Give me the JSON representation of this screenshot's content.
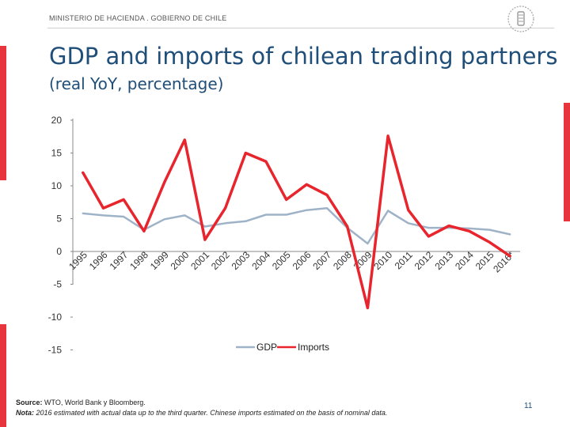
{
  "header": {
    "org": "MINISTERIO DE HACIENDA . GOBIERNO DE CHILE"
  },
  "slide": {
    "title": "GDP and imports of chilean trading partners",
    "subtitle": "(real YoY, percentage)",
    "source_label": "Source:",
    "source_text": " WTO, World Bank y Bloomberg.",
    "note_label": "Nota:",
    "note_text": " 2016 estimated with actual data up to the third quarter. Chinese imports estimated on the basis of nominal data.",
    "page_number": "11"
  },
  "colors": {
    "accent": "#e8343c",
    "gdp": "#9fb3c8",
    "imports": "#e8242c",
    "title": "#1f4e79"
  },
  "chart_data": {
    "type": "line",
    "title": "GDP and imports of chilean trading partners",
    "subtitle": "(real YoY, percentage)",
    "categories": [
      "1995",
      "1996",
      "1997",
      "1998",
      "1999",
      "2000",
      "2001",
      "2002",
      "2003",
      "2004",
      "2005",
      "2006",
      "2007",
      "2008",
      "2009",
      "2010",
      "2011",
      "2012",
      "2013",
      "2014",
      "2015",
      "2016*"
    ],
    "series": [
      {
        "name": "GDP",
        "values": [
          5.8,
          5.5,
          5.3,
          3.3,
          4.9,
          5.5,
          3.8,
          4.3,
          4.6,
          5.6,
          5.6,
          6.3,
          6.6,
          3.6,
          1.2,
          6.2,
          4.3,
          3.6,
          3.6,
          3.5,
          3.3,
          2.6
        ]
      },
      {
        "name": "Imports",
        "values": [
          12.0,
          6.6,
          7.9,
          3.1,
          10.5,
          17.0,
          1.8,
          6.6,
          15.0,
          13.7,
          7.9,
          10.2,
          8.6,
          3.8,
          -8.6,
          17.6,
          6.3,
          2.3,
          3.9,
          3.1,
          1.4,
          -0.7
        ]
      }
    ],
    "y_ticks": [
      "20",
      "15",
      "10",
      "5",
      "0",
      "-5",
      "-10",
      "-15"
    ],
    "ylim": [
      -15,
      20
    ],
    "legend": [
      "GDP",
      "Imports"
    ],
    "legend_position": "bottom-center"
  }
}
